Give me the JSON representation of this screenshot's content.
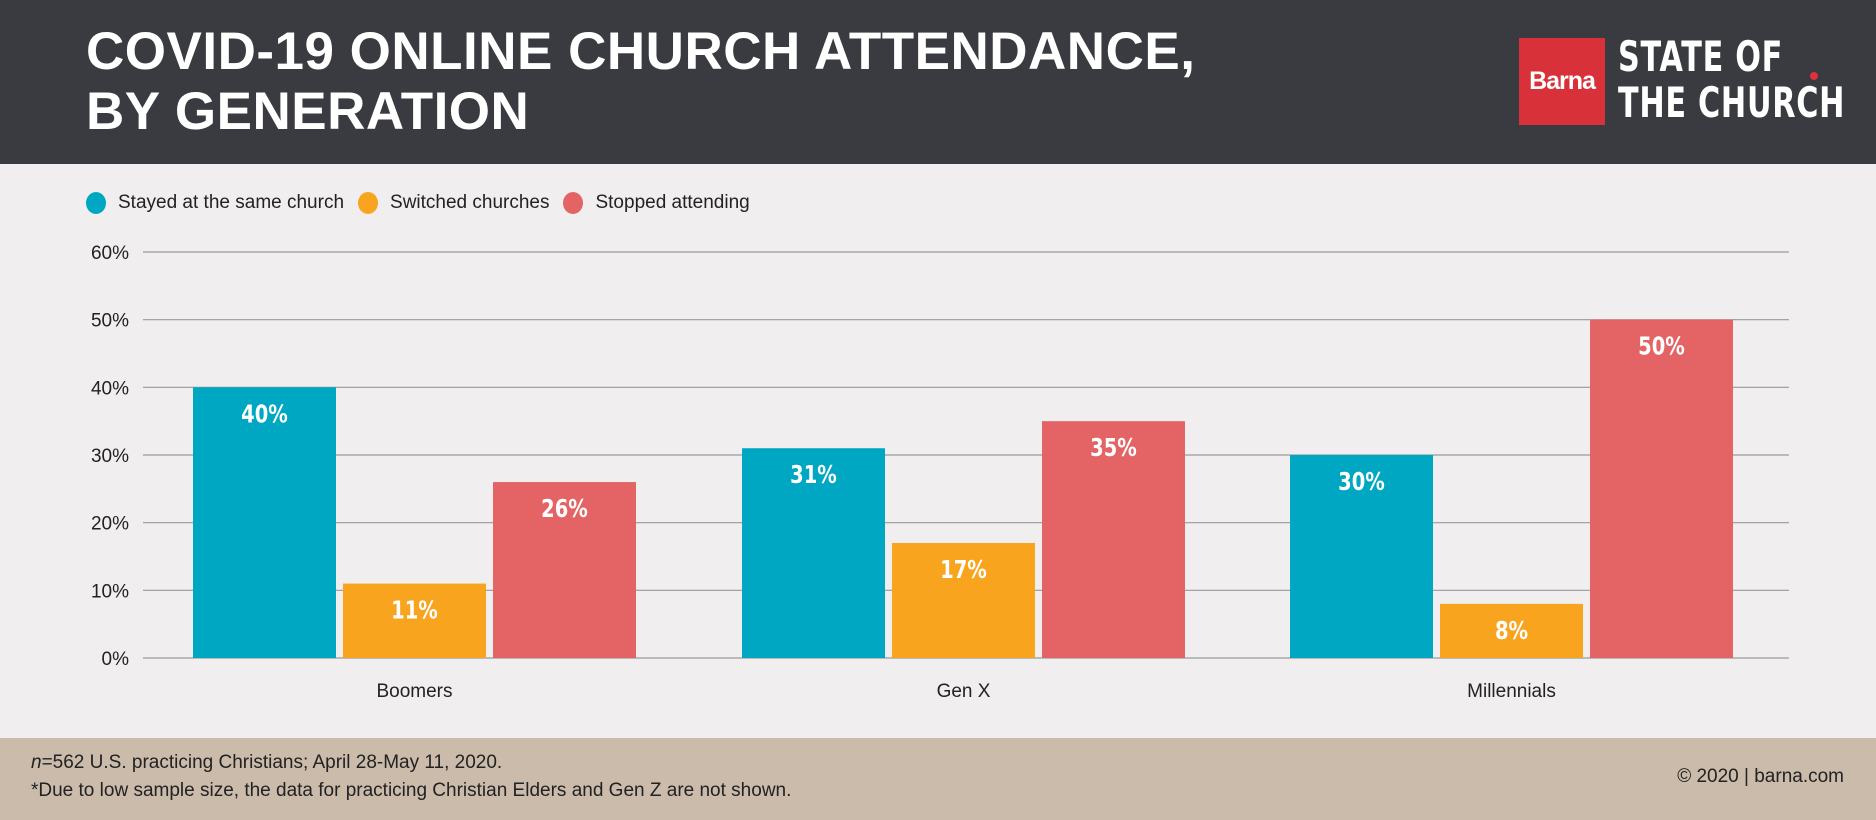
{
  "header": {
    "title_line1": "COVID-19 ONLINE CHURCH ATTENDANCE,",
    "title_line2": "BY GENERATION",
    "logo_brand": "Barna",
    "logo_line1": "STATE OF",
    "logo_line2": "THE CHURCH"
  },
  "colors": {
    "stayed": "#00a7c2",
    "switched": "#f8a41e",
    "stopped": "#e46465",
    "header": "#393b40"
  },
  "chart_data": {
    "type": "bar",
    "title": "COVID-19 ONLINE CHURCH ATTENDANCE, BY GENERATION",
    "categories": [
      "Boomers",
      "Gen X",
      "Millennials"
    ],
    "series": [
      {
        "name": "Stayed at the same church",
        "values": [
          40,
          31,
          30
        ]
      },
      {
        "name": "Switched churches",
        "values": [
          11,
          17,
          8
        ]
      },
      {
        "name": "Stopped attending",
        "values": [
          26,
          35,
          50
        ]
      }
    ],
    "data_labels": [
      [
        "40%",
        "31%",
        "30%"
      ],
      [
        "11%",
        "17%",
        "8%"
      ],
      [
        "26%",
        "35%",
        "50%"
      ]
    ],
    "yticks": [
      "0%",
      "10%",
      "20%",
      "30%",
      "40%",
      "50%",
      "60%"
    ],
    "ylim": [
      0,
      60
    ],
    "xlabel": "",
    "ylabel": "",
    "grid": true,
    "legend": "top-left"
  },
  "footer": {
    "note1_n": "n",
    "note1": "=562 U.S. practicing Christians; April 28-May 11, 2020.",
    "note2": "*Due to low sample size, the data for practicing Christian Elders and Gen Z are not shown.",
    "copyright": "© 2020 | barna.com"
  }
}
